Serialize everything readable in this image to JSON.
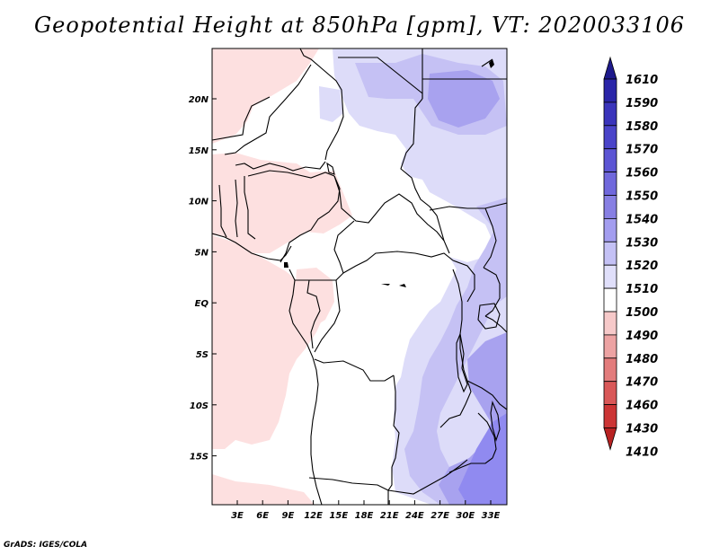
{
  "title": "Geopotential Height at 850hPa [gpm], VT: 2020033106",
  "credit": "GrADS: IGES/COLA",
  "map": {
    "lat_labels": [
      "20N",
      "15N",
      "10N",
      "5N",
      "EQ",
      "5S",
      "10S",
      "15S"
    ],
    "lon_labels": [
      "3E",
      "6E",
      "9E",
      "12E",
      "15E",
      "18E",
      "21E",
      "24E",
      "27E",
      "30E",
      "33E"
    ]
  },
  "colorbar": {
    "levels": [
      "1610",
      "1590",
      "1580",
      "1570",
      "1560",
      "1550",
      "1540",
      "1530",
      "1520",
      "1510",
      "1500",
      "1490",
      "1480",
      "1470",
      "1460",
      "1430",
      "1410"
    ],
    "colors": [
      "#1e1a8c",
      "#2a25a8",
      "#3a34bb",
      "#4a44c9",
      "#5c55d4",
      "#7068dc",
      "#877fe3",
      "#a39def",
      "#c4c1f5",
      "#e0dffa",
      "#ffffff",
      "#f6c9c9",
      "#eda3a3",
      "#e37c7c",
      "#d95858",
      "#cc3535",
      "#b82222"
    ]
  },
  "field_colors": {
    "pink": "#fde0e0",
    "white": "#ffffff",
    "lavender": "#dddcf9",
    "light_purple": "#c5c1f4",
    "purple": "#a8a2ef",
    "deep_purple": "#908af0"
  }
}
